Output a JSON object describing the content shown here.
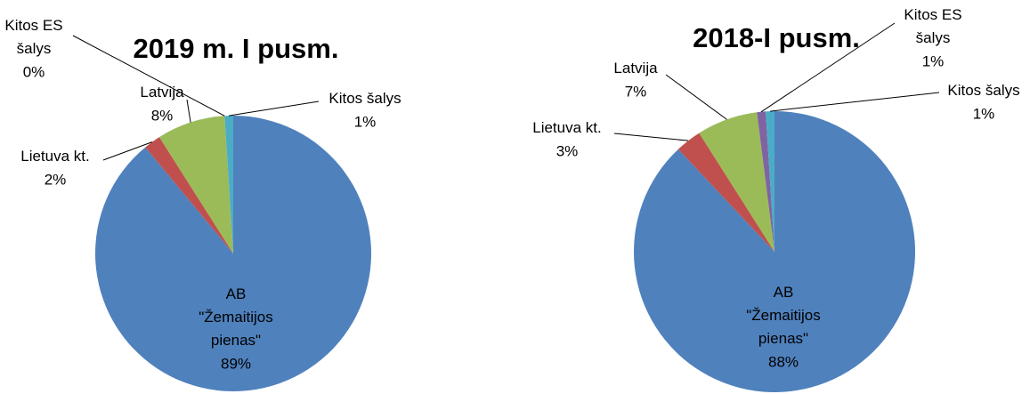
{
  "chart_data": [
    {
      "type": "pie",
      "title": "2019 m. I pusm.",
      "categories": [
        "AB \"Žemaitijos pienas\"",
        "Lietuva kt.",
        "Latvija",
        "Kitos ES šalys",
        "Kitos šalys"
      ],
      "values": [
        89,
        2,
        8,
        0,
        1
      ],
      "value_labels": [
        "89%",
        "2%",
        "8%",
        "0%",
        "1%"
      ],
      "colors": [
        "#4f81bd",
        "#c0504d",
        "#9bbb59",
        "#8064a2",
        "#4bacc6"
      ]
    },
    {
      "type": "pie",
      "title": "2018-I pusm.",
      "categories": [
        "AB \"Žemaitijos pienas\"",
        "Lietuva kt.",
        "Latvija",
        "Kitos ES šalys",
        "Kitos šalys"
      ],
      "values": [
        88,
        3,
        7,
        1,
        1
      ],
      "value_labels": [
        "88%",
        "3%",
        "7%",
        "1%",
        "1%"
      ],
      "colors": [
        "#4f81bd",
        "#c0504d",
        "#9bbb59",
        "#8064a2",
        "#4bacc6"
      ]
    }
  ]
}
